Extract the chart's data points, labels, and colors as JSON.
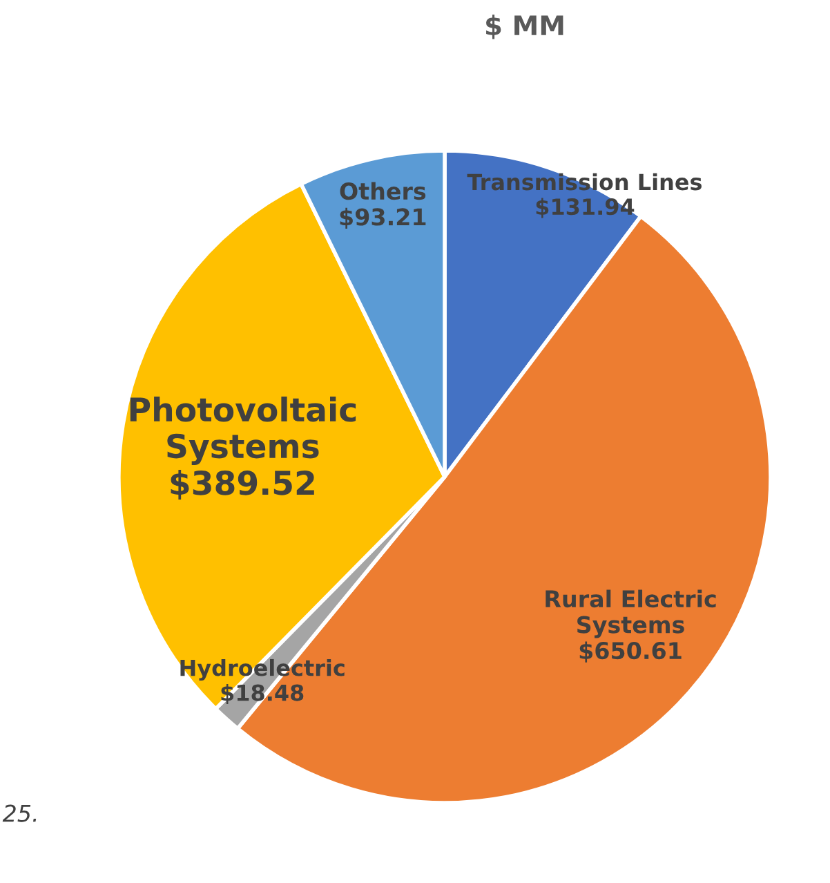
{
  "chart_data": {
    "type": "pie",
    "title": "$ MM",
    "categories": [
      "Transmission Lines",
      "Rural Electric Systems",
      "Hydroelectric",
      "Photovoltaic Systems",
      "Others"
    ],
    "values": [
      131.94,
      650.61,
      18.48,
      389.52,
      93.21
    ],
    "value_labels": [
      "$131.94",
      "$650.61",
      "$18.48",
      "$389.52",
      "$93.21"
    ],
    "colors": [
      "#4472c4",
      "#ed7d31",
      "#a5a5a5",
      "#ffc000",
      "#5b9bd5"
    ],
    "annotations": [
      "25."
    ],
    "legend": false
  }
}
